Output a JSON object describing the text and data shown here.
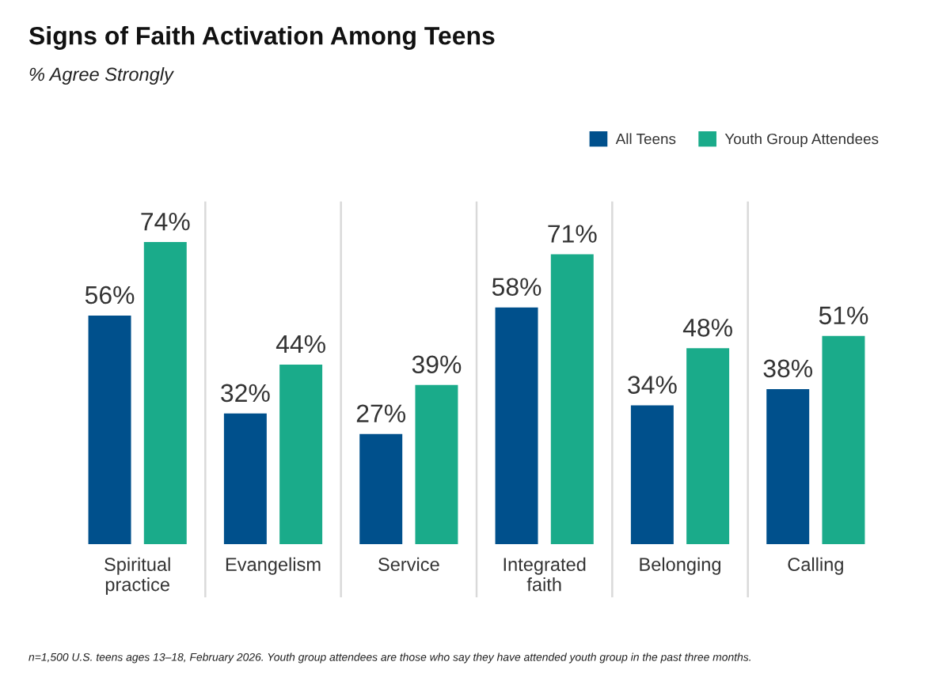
{
  "chart_data": {
    "type": "bar",
    "title": "Signs of Faith Activation Among Teens",
    "subtitle": "% Agree Strongly",
    "categories": [
      "Spiritual\npractice",
      "Evangelism",
      "Service",
      "Integrated\nfaith",
      "Belonging",
      "Calling"
    ],
    "series": [
      {
        "name": "All Teens",
        "color": "#00508c",
        "values": [
          56,
          32,
          27,
          58,
          34,
          38
        ],
        "value_labels": [
          "56%",
          "32%",
          "27%",
          "58%",
          "34%",
          "38%"
        ]
      },
      {
        "name": "Youth Group Attendees",
        "color": "#1aab8a",
        "values": [
          74,
          44,
          39,
          71,
          48,
          51
        ],
        "value_labels": [
          "74%",
          "44%",
          "39%",
          "71%",
          "48%",
          "51%"
        ]
      }
    ],
    "grid": "x",
    "legend": "top right",
    "tick_labels": "x",
    "annotations": [
      "n=1,500 U.S. teens ages 13–18, February 2026. Youth group attendees are those who say they have attended youth group in the past three months."
    ]
  }
}
